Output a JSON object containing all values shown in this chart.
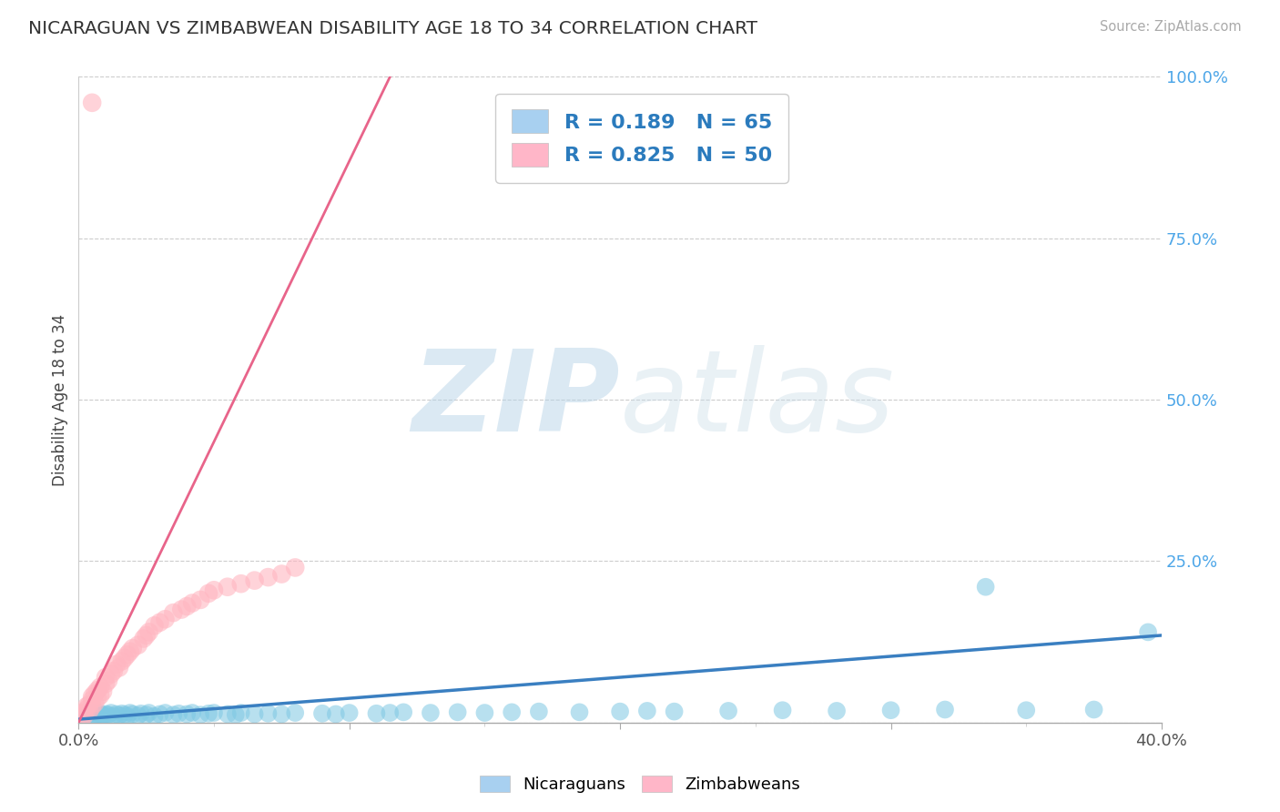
{
  "title": "NICARAGUAN VS ZIMBABWEAN DISABILITY AGE 18 TO 34 CORRELATION CHART",
  "source": "Source: ZipAtlas.com",
  "ylabel": "Disability Age 18 to 34",
  "xlim": [
    0.0,
    0.4
  ],
  "ylim": [
    0.0,
    1.0
  ],
  "ytick_vals": [
    0.0,
    0.25,
    0.5,
    0.75,
    1.0
  ],
  "ytick_labels": [
    "",
    "25.0%",
    "50.0%",
    "75.0%",
    "100.0%"
  ],
  "nicaraguan_color": "#7ec8e3",
  "zimbabwean_color": "#ffb6c1",
  "nicaraguan_line_color": "#3a7fc1",
  "zimbabwean_line_color": "#e8648a",
  "R_nicaraguan": 0.189,
  "N_nicaraguan": 65,
  "R_zimbabwean": 0.825,
  "N_zimbabwean": 50,
  "legend_label_1": "Nicaraguans",
  "legend_label_2": "Zimbabweans",
  "watermark_zip": "ZIP",
  "watermark_atlas": "atlas",
  "background_color": "#ffffff",
  "nic_x": [
    0.003,
    0.005,
    0.005,
    0.006,
    0.007,
    0.008,
    0.008,
    0.009,
    0.01,
    0.01,
    0.011,
    0.012,
    0.013,
    0.014,
    0.015,
    0.016,
    0.017,
    0.018,
    0.019,
    0.02,
    0.022,
    0.023,
    0.025,
    0.026,
    0.028,
    0.03,
    0.032,
    0.035,
    0.037,
    0.04,
    0.042,
    0.045,
    0.048,
    0.05,
    0.055,
    0.058,
    0.06,
    0.065,
    0.07,
    0.075,
    0.08,
    0.09,
    0.095,
    0.1,
    0.11,
    0.115,
    0.12,
    0.13,
    0.14,
    0.15,
    0.16,
    0.17,
    0.185,
    0.2,
    0.21,
    0.22,
    0.24,
    0.26,
    0.28,
    0.3,
    0.32,
    0.335,
    0.35,
    0.375,
    0.395
  ],
  "nic_y": [
    0.01,
    0.008,
    0.015,
    0.01,
    0.012,
    0.009,
    0.014,
    0.011,
    0.013,
    0.01,
    0.012,
    0.015,
    0.01,
    0.013,
    0.011,
    0.014,
    0.012,
    0.01,
    0.015,
    0.013,
    0.011,
    0.014,
    0.012,
    0.015,
    0.01,
    0.013,
    0.015,
    0.012,
    0.014,
    0.013,
    0.015,
    0.012,
    0.014,
    0.015,
    0.013,
    0.012,
    0.015,
    0.013,
    0.014,
    0.013,
    0.015,
    0.014,
    0.013,
    0.015,
    0.014,
    0.015,
    0.016,
    0.015,
    0.016,
    0.015,
    0.016,
    0.017,
    0.016,
    0.017,
    0.018,
    0.017,
    0.018,
    0.019,
    0.018,
    0.019,
    0.02,
    0.21,
    0.019,
    0.02,
    0.14
  ],
  "zim_x": [
    0.001,
    0.002,
    0.002,
    0.003,
    0.003,
    0.004,
    0.004,
    0.005,
    0.005,
    0.005,
    0.006,
    0.006,
    0.007,
    0.007,
    0.008,
    0.008,
    0.009,
    0.01,
    0.01,
    0.011,
    0.012,
    0.013,
    0.014,
    0.015,
    0.016,
    0.017,
    0.018,
    0.019,
    0.02,
    0.022,
    0.024,
    0.025,
    0.026,
    0.028,
    0.03,
    0.032,
    0.035,
    0.038,
    0.04,
    0.042,
    0.045,
    0.048,
    0.05,
    0.055,
    0.06,
    0.065,
    0.07,
    0.075,
    0.08,
    0.005
  ],
  "zim_y": [
    0.005,
    0.01,
    0.015,
    0.02,
    0.025,
    0.018,
    0.028,
    0.025,
    0.035,
    0.04,
    0.03,
    0.045,
    0.038,
    0.05,
    0.042,
    0.055,
    0.048,
    0.06,
    0.07,
    0.065,
    0.075,
    0.08,
    0.09,
    0.085,
    0.095,
    0.1,
    0.105,
    0.11,
    0.115,
    0.12,
    0.13,
    0.135,
    0.14,
    0.15,
    0.155,
    0.16,
    0.17,
    0.175,
    0.18,
    0.185,
    0.19,
    0.2,
    0.205,
    0.21,
    0.215,
    0.22,
    0.225,
    0.23,
    0.24,
    0.96
  ],
  "zim_line_x": [
    0.0,
    0.115
  ],
  "zim_line_y": [
    0.0,
    1.0
  ],
  "nic_line_x": [
    0.0,
    0.4
  ],
  "nic_line_y": [
    0.005,
    0.135
  ]
}
